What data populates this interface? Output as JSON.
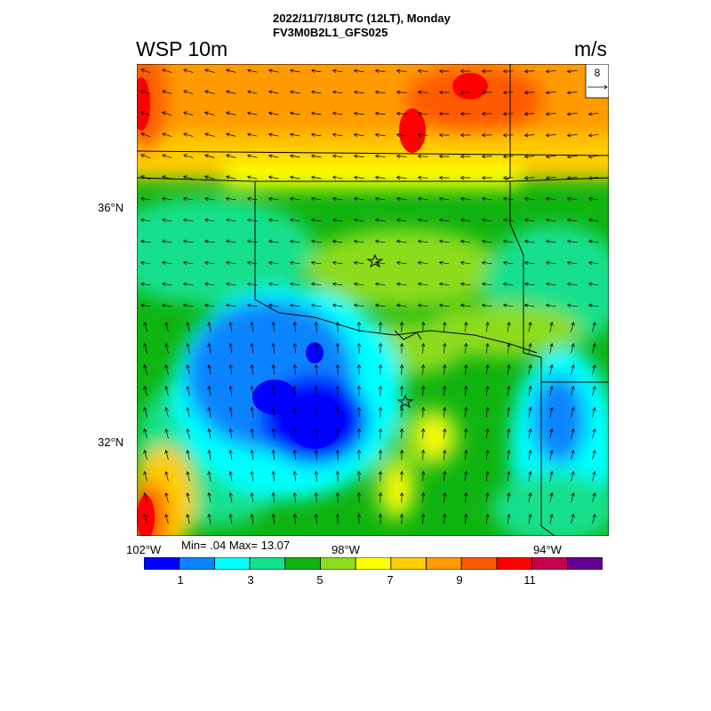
{
  "header": {
    "title_line1": "2022/11/7/18UTC (12LT), Monday",
    "title_line2": "FV3M0B2L1_GFS025",
    "variable": "WSP 10m",
    "unit": "m/s"
  },
  "reference_vector": {
    "label": "8"
  },
  "axes": {
    "lat_labels": [
      "36°N",
      "32°N"
    ],
    "lon_labels": [
      "102°W",
      "98°W",
      "94°W"
    ]
  },
  "stats": {
    "text": "Min= .04 Max= 13.07"
  },
  "colorbar": {
    "colors": [
      "#0000ff",
      "#0a84ff",
      "#00ffff",
      "#14e08c",
      "#10b410",
      "#8cdc1e",
      "#ffff00",
      "#ffcc00",
      "#ff9b00",
      "#ff5a00",
      "#ff0000",
      "#c8004b",
      "#640096"
    ],
    "labels": [
      "1",
      "3",
      "5",
      "7",
      "9",
      "11"
    ]
  },
  "markers": {
    "icon": "star-icon"
  }
}
